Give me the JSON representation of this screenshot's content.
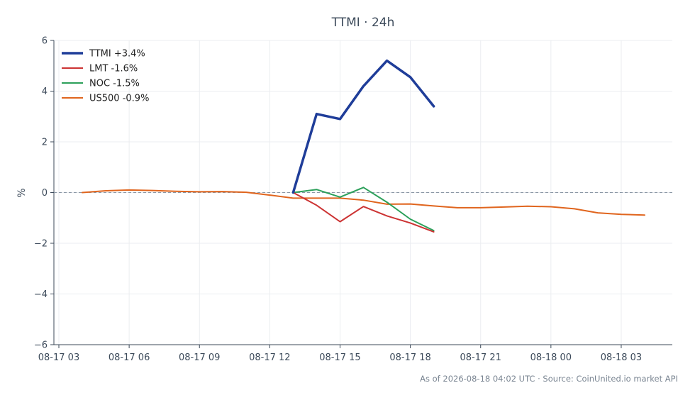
{
  "chart_data": {
    "type": "line",
    "title": "TTMI · 24h",
    "ylabel": "%",
    "xlabel": "",
    "ylim": [
      -6,
      6
    ],
    "yticks": [
      -6,
      -4,
      -2,
      0,
      2,
      4,
      6
    ],
    "yticklabels": [
      "−6",
      "−4",
      "−2",
      "0",
      "2",
      "4",
      "6"
    ],
    "x_start": "2026-08-17 03:00",
    "x_end": "2026-08-18 05:15",
    "xticks": [
      "2026-08-17 03:00",
      "2026-08-17 06:00",
      "2026-08-17 09:00",
      "2026-08-17 12:00",
      "2026-08-17 15:00",
      "2026-08-17 18:00",
      "2026-08-17 21:00",
      "2026-08-18 00:00",
      "2026-08-18 03:00"
    ],
    "xticklabels": [
      "08-17 03",
      "08-17 06",
      "08-17 09",
      "08-17 12",
      "08-17 15",
      "08-17 18",
      "08-17 21",
      "08-18 00",
      "08-18 03"
    ],
    "grid": true,
    "zero_line": true,
    "legend_position": "top-left",
    "series": [
      {
        "name": "TTMI +3.4%",
        "color": "#1f3d99",
        "x": [
          "2026-08-17 13:00",
          "2026-08-17 14:00",
          "2026-08-17 15:00",
          "2026-08-17 16:00",
          "2026-08-17 17:00",
          "2026-08-17 18:00",
          "2026-08-17 19:00"
        ],
        "values": [
          0.0,
          3.1,
          2.9,
          4.2,
          5.2,
          4.55,
          3.4
        ]
      },
      {
        "name": "LMT -1.6%",
        "color": "#cc3333",
        "x": [
          "2026-08-17 13:00",
          "2026-08-17 14:00",
          "2026-08-17 15:00",
          "2026-08-17 16:00",
          "2026-08-17 17:00",
          "2026-08-17 18:00",
          "2026-08-17 19:00"
        ],
        "values": [
          0.0,
          -0.5,
          -1.15,
          -0.55,
          -0.92,
          -1.2,
          -1.55
        ]
      },
      {
        "name": "NOC -1.5%",
        "color": "#2ca05a",
        "x": [
          "2026-08-17 13:00",
          "2026-08-17 14:00",
          "2026-08-17 15:00",
          "2026-08-17 16:00",
          "2026-08-17 17:00",
          "2026-08-17 18:00",
          "2026-08-17 19:00"
        ],
        "values": [
          0.0,
          0.12,
          -0.18,
          0.2,
          -0.38,
          -1.05,
          -1.5
        ]
      },
      {
        "name": "US500 -0.9%",
        "color": "#e0651e",
        "x": [
          "2026-08-17 04:00",
          "2026-08-17 05:00",
          "2026-08-17 06:00",
          "2026-08-17 07:00",
          "2026-08-17 08:00",
          "2026-08-17 09:00",
          "2026-08-17 10:00",
          "2026-08-17 11:00",
          "2026-08-17 12:00",
          "2026-08-17 13:00",
          "2026-08-17 14:00",
          "2026-08-17 15:00",
          "2026-08-17 16:00",
          "2026-08-17 17:00",
          "2026-08-17 18:00",
          "2026-08-17 19:00",
          "2026-08-17 20:00",
          "2026-08-17 21:00",
          "2026-08-17 22:00",
          "2026-08-17 23:00",
          "2026-08-18 00:00",
          "2026-08-18 01:00",
          "2026-08-18 02:00",
          "2026-08-18 03:00",
          "2026-08-18 04:00"
        ],
        "values": [
          0.0,
          0.07,
          0.1,
          0.08,
          0.05,
          0.03,
          0.04,
          0.01,
          -0.1,
          -0.22,
          -0.22,
          -0.22,
          -0.3,
          -0.46,
          -0.45,
          -0.53,
          -0.6,
          -0.6,
          -0.57,
          -0.54,
          -0.56,
          -0.64,
          -0.8,
          -0.86,
          -0.89
        ]
      }
    ]
  },
  "footer": "As of 2026-08-18 04:02 UTC · Source: CoinUnited.io market API"
}
